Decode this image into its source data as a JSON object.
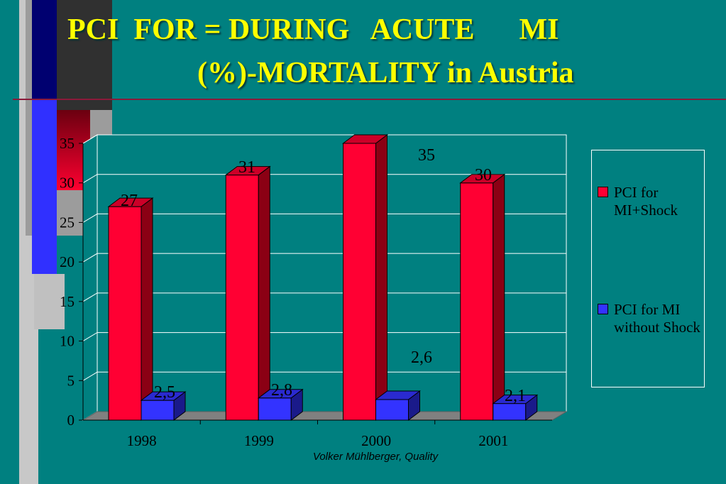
{
  "slide": {
    "title_line1": "PCI  FOR = DURING   ACUTE      MI",
    "title_line2": "(%)-MORTALITY in Austria",
    "footer": "Volker Mühlberger, Quality",
    "colors": {
      "background": "#008080",
      "title": "#ffff00"
    }
  },
  "chart_data": {
    "type": "bar",
    "categories": [
      "1998",
      "1999",
      "2000",
      "2001"
    ],
    "series": [
      {
        "name": "PCI for MI+Shock",
        "values": [
          27,
          31,
          35,
          30
        ],
        "labels": [
          "27",
          "31",
          "35",
          "30"
        ],
        "color": "#ff0033"
      },
      {
        "name": "PCI for MI without Shock",
        "values": [
          2.5,
          2.8,
          2.6,
          2.1
        ],
        "labels": [
          "2,5",
          "2,8",
          "2,6",
          "2,1"
        ],
        "color": "#3333ff"
      }
    ],
    "y_ticks": [
      "0",
      "5",
      "10",
      "15",
      "20",
      "25",
      "30",
      "35"
    ],
    "ylim": [
      0,
      35
    ],
    "grid": true,
    "legend_position": "right",
    "legend_labels": [
      "PCI for MI+Shock",
      "PCI for MI without Shock"
    ],
    "three_d": true
  }
}
